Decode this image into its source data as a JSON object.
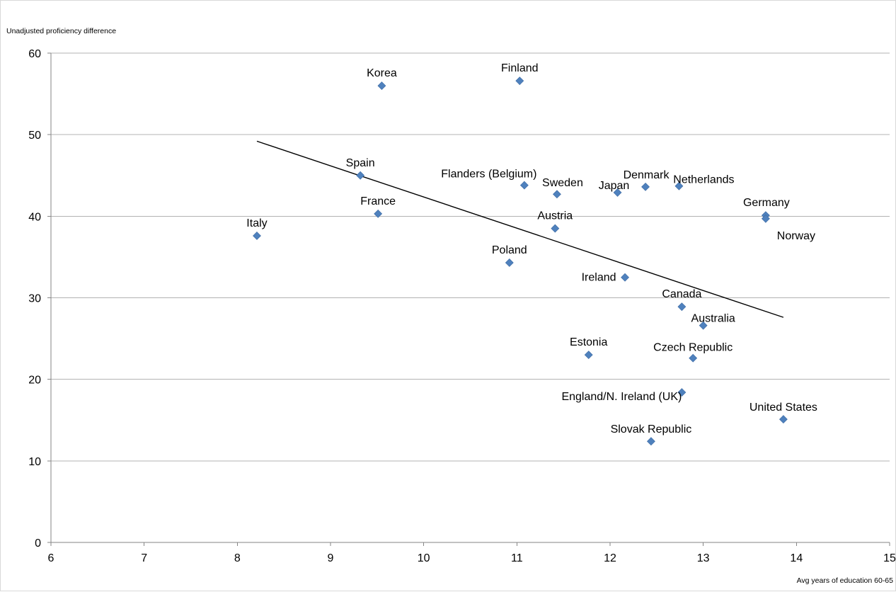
{
  "chart_data": {
    "type": "scatter",
    "title": "",
    "xlabel": "Avg years of education 60-65",
    "ylabel": "Unadjusted proficiency difference",
    "xlim": [
      6,
      15
    ],
    "ylim": [
      0,
      60
    ],
    "xticks": [
      6,
      7,
      8,
      9,
      10,
      11,
      12,
      13,
      14,
      15
    ],
    "yticks": [
      0,
      10,
      20,
      30,
      40,
      50,
      60
    ],
    "grid": "horizontal",
    "marker_color": "#4f81bd",
    "points": [
      {
        "label": "Korea",
        "x": 9.55,
        "y": 56.0
      },
      {
        "label": "Finland",
        "x": 11.03,
        "y": 56.6
      },
      {
        "label": "Spain",
        "x": 9.32,
        "y": 45.0
      },
      {
        "label": "France",
        "x": 9.51,
        "y": 40.3
      },
      {
        "label": "Italy",
        "x": 8.21,
        "y": 37.6
      },
      {
        "label": "Flanders (Belgium)",
        "x": 11.08,
        "y": 43.8
      },
      {
        "label": "Sweden",
        "x": 11.43,
        "y": 42.7
      },
      {
        "label": "Japan",
        "x": 12.08,
        "y": 42.9
      },
      {
        "label": "Denmark",
        "x": 12.38,
        "y": 43.6
      },
      {
        "label": "Netherlands",
        "x": 12.74,
        "y": 43.7
      },
      {
        "label": "Germany",
        "x": 13.67,
        "y": 40.1
      },
      {
        "label": "Norway",
        "x": 13.67,
        "y": 39.7
      },
      {
        "label": "Austria",
        "x": 11.41,
        "y": 38.5
      },
      {
        "label": "Poland",
        "x": 10.92,
        "y": 34.3
      },
      {
        "label": "Ireland",
        "x": 12.16,
        "y": 32.5
      },
      {
        "label": "Canada",
        "x": 12.77,
        "y": 28.9
      },
      {
        "label": "Australia",
        "x": 13.0,
        "y": 26.6
      },
      {
        "label": "Estonia",
        "x": 11.77,
        "y": 23.0
      },
      {
        "label": "Czech Republic",
        "x": 12.89,
        "y": 22.6
      },
      {
        "label": "England/N. Ireland (UK)",
        "x": 12.77,
        "y": 18.4
      },
      {
        "label": "United States",
        "x": 13.86,
        "y": 15.1
      },
      {
        "label": "Slovak Republic",
        "x": 12.44,
        "y": 12.4
      }
    ],
    "trendline": {
      "x": [
        8.21,
        13.86
      ],
      "y": [
        49.2,
        27.6
      ]
    }
  }
}
